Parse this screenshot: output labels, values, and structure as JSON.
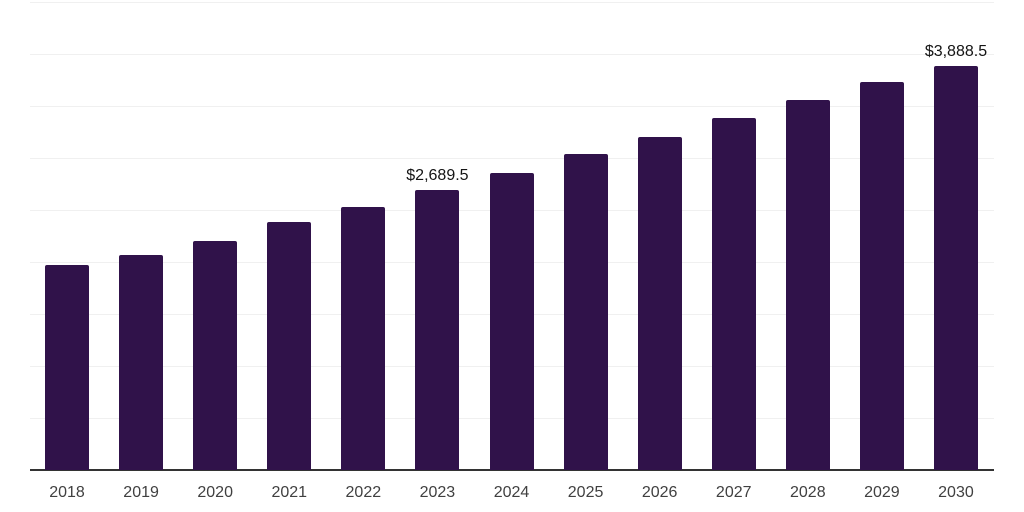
{
  "chart_data": {
    "type": "bar",
    "title": "",
    "xlabel": "",
    "ylabel": "",
    "categories": [
      "2018",
      "2019",
      "2020",
      "2021",
      "2022",
      "2023",
      "2024",
      "2025",
      "2026",
      "2027",
      "2028",
      "2029",
      "2030"
    ],
    "values": [
      1970,
      2065,
      2205,
      2380,
      2530,
      2689.5,
      2860,
      3035,
      3205,
      3380,
      3555,
      3730,
      3888.5
    ],
    "labeled_points": [
      {
        "category": "2023",
        "label": "$2,689.5"
      },
      {
        "category": "2030",
        "label": "$3,888.5"
      }
    ],
    "ylim": [
      0,
      4500
    ],
    "gridline_step": 500,
    "grid": "horizontal",
    "legend": "none",
    "y_axis_labels_visible": false,
    "colors": {
      "bar": "#30124a",
      "gridline": "#f0f0f0",
      "axis": "#333333",
      "tick_label": "#404040",
      "data_label": "#141414",
      "background": "#ffffff"
    }
  }
}
